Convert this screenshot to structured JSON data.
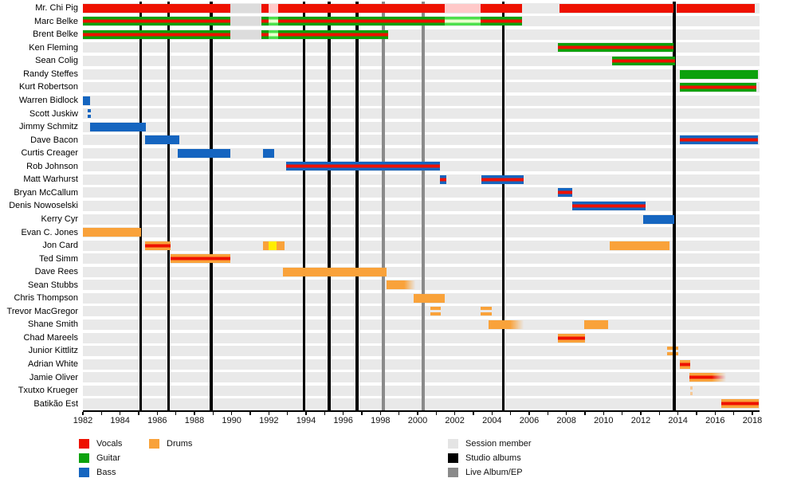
{
  "chart_data": {
    "type": "timeline",
    "description": "Band members timeline (Gantt-style) with instrument roles and album release lines",
    "x_axis": {
      "start": 1982,
      "end": 2018,
      "tick_step": 1,
      "label_step": 2,
      "tick_labels": [
        "1982",
        "1984",
        "1986",
        "1988",
        "1990",
        "1992",
        "1994",
        "1996",
        "1998",
        "2000",
        "2002",
        "2004",
        "2006",
        "2008",
        "2010",
        "2012",
        "2014",
        "2016",
        "2018"
      ]
    },
    "albums": {
      "studio": [
        1985.1,
        1986.6,
        1988.9,
        1993.9,
        1995.25,
        1996.75,
        2004.6,
        2013.8
      ],
      "live": [
        1998.15,
        2000.3
      ]
    },
    "colors": {
      "vocals": "#ee1100",
      "guitar": "#0ca10c",
      "bass": "#1565c0",
      "drums": "#f9a23a",
      "vocals_light": "#ffc9c9",
      "guitar_light": "#4de04d",
      "drums_light": "#ffee00",
      "session": "#dcdcdc",
      "studio_line": "#000000",
      "live_line": "#8a8a8a",
      "row_background": "#e9e9e9"
    },
    "styles": {
      "vocals": {
        "stripes": [
          "#ee1100"
        ]
      },
      "guitar": {
        "stripes": [
          "#0ca10c"
        ]
      },
      "bass": {
        "stripes": [
          "#1565c0"
        ]
      },
      "drums": {
        "stripes": [
          "#f9a23a"
        ]
      },
      "guitar_vocals": {
        "stripes": [
          "#0ca10c",
          "#ee1100",
          "#0ca10c"
        ]
      },
      "bass_vocals": {
        "stripes": [
          "#1565c0",
          "#ee1100",
          "#1565c0"
        ]
      },
      "drums_vocals": {
        "stripes": [
          "#f9a23a",
          "#ee1100",
          "#f9a23a"
        ]
      },
      "vocals_light": {
        "stripes": [
          "#ffc9c9"
        ]
      },
      "guitar_light": {
        "stripes": [
          "#4de04d",
          "#eaffcf",
          "#4de04d"
        ]
      },
      "drums_light": {
        "stripes": [
          "#ffee00"
        ]
      },
      "session": {
        "stripes": [
          "#dcdcdc"
        ]
      },
      "bass_dash": {
        "stripes": [
          "#1565c0"
        ],
        "dashed": true
      },
      "drums_dash": {
        "stripes": [
          "#f9a23a"
        ],
        "dashed": true
      },
      "drums_dash_faint": {
        "stripes": [
          "#f5c896"
        ],
        "dashed": true
      }
    },
    "members": [
      {
        "name": "Mr. Chi Pig",
        "bars": [
          {
            "f": 1982,
            "t": 1989.95,
            "s": "vocals"
          },
          {
            "f": 1989.95,
            "t": 1991.6,
            "s": "session"
          },
          {
            "f": 1991.6,
            "t": 1992.0,
            "s": "vocals"
          },
          {
            "f": 1992.0,
            "t": 1992.5,
            "s": "vocals_light"
          },
          {
            "f": 1992.5,
            "t": 2001.45,
            "s": "vocals"
          },
          {
            "f": 2001.45,
            "t": 2003.4,
            "s": "vocals_light"
          },
          {
            "f": 2003.4,
            "t": 2005.6,
            "s": "vocals"
          },
          {
            "f": 2007.65,
            "t": 2013.75,
            "s": "vocals"
          },
          {
            "f": 2013.95,
            "t": 2018.15,
            "s": "vocals"
          }
        ]
      },
      {
        "name": "Marc Belke",
        "bars": [
          {
            "f": 1982,
            "t": 1989.95,
            "s": "guitar_vocals"
          },
          {
            "f": 1989.95,
            "t": 1991.6,
            "s": "session"
          },
          {
            "f": 1991.6,
            "t": 1992.0,
            "s": "guitar_vocals"
          },
          {
            "f": 1992.0,
            "t": 1992.5,
            "s": "guitar_light"
          },
          {
            "f": 1992.5,
            "t": 2001.45,
            "s": "guitar_vocals"
          },
          {
            "f": 2001.45,
            "t": 2003.4,
            "s": "guitar_light"
          },
          {
            "f": 2003.4,
            "t": 2005.6,
            "s": "guitar_vocals"
          }
        ]
      },
      {
        "name": "Brent Belke",
        "bars": [
          {
            "f": 1982,
            "t": 1989.95,
            "s": "guitar_vocals"
          },
          {
            "f": 1989.95,
            "t": 1991.6,
            "s": "session"
          },
          {
            "f": 1991.6,
            "t": 1992.0,
            "s": "guitar_vocals"
          },
          {
            "f": 1992.0,
            "t": 1992.5,
            "s": "guitar_light"
          },
          {
            "f": 1992.5,
            "t": 1998.4,
            "s": "guitar_vocals"
          }
        ]
      },
      {
        "name": "Ken Fleming",
        "bars": [
          {
            "f": 2007.55,
            "t": 2013.75,
            "s": "guitar_vocals"
          }
        ]
      },
      {
        "name": "Sean Colig",
        "bars": [
          {
            "f": 2010.45,
            "t": 2013.85,
            "s": "guitar_vocals"
          }
        ]
      },
      {
        "name": "Randy Steffes",
        "bars": [
          {
            "f": 2014.1,
            "t": 2018.3,
            "s": "guitar"
          }
        ]
      },
      {
        "name": "Kurt Robertson",
        "bars": [
          {
            "f": 2014.1,
            "t": 2018.2,
            "s": "guitar_vocals"
          }
        ]
      },
      {
        "name": "Warren Bidlock",
        "bars": [
          {
            "f": 1982,
            "t": 1982.4,
            "s": "bass"
          }
        ]
      },
      {
        "name": "Scott Juskiw",
        "bars": [
          {
            "f": 1982.25,
            "t": 1982.45,
            "s": "bass_dash"
          }
        ]
      },
      {
        "name": "Jimmy Schmitz",
        "bars": [
          {
            "f": 1982.4,
            "t": 1985.4,
            "s": "bass"
          }
        ]
      },
      {
        "name": "Dave Bacon",
        "bars": [
          {
            "f": 1985.35,
            "t": 1987.2,
            "s": "bass"
          },
          {
            "f": 2014.1,
            "t": 2018.3,
            "s": "bass_vocals"
          }
        ]
      },
      {
        "name": "Curtis Creager",
        "bars": [
          {
            "f": 1987.1,
            "t": 1989.95,
            "s": "bass"
          },
          {
            "f": 1991.7,
            "t": 1992.3,
            "s": "bass"
          }
        ]
      },
      {
        "name": "Rob Johnson",
        "bars": [
          {
            "f": 1992.95,
            "t": 2001.2,
            "s": "bass_vocals"
          }
        ]
      },
      {
        "name": "Matt Warhurst",
        "bars": [
          {
            "f": 2001.2,
            "t": 2001.55,
            "s": "bass_vocals"
          },
          {
            "f": 2003.45,
            "t": 2005.7,
            "s": "bass_vocals"
          }
        ]
      },
      {
        "name": "Bryan McCallum",
        "bars": [
          {
            "f": 2007.55,
            "t": 2008.3,
            "s": "bass_vocals"
          }
        ]
      },
      {
        "name": "Denis Nowoselski",
        "bars": [
          {
            "f": 2008.3,
            "t": 2012.25,
            "s": "bass_vocals"
          }
        ]
      },
      {
        "name": "Kerry Cyr",
        "bars": [
          {
            "f": 2012.15,
            "t": 2013.8,
            "s": "bass"
          }
        ]
      },
      {
        "name": "Evan C. Jones",
        "bars": [
          {
            "f": 1982,
            "t": 1985.15,
            "s": "drums"
          }
        ]
      },
      {
        "name": "Jon Card",
        "bars": [
          {
            "f": 1985.35,
            "t": 1986.7,
            "s": "drums_vocals"
          },
          {
            "f": 1991.7,
            "t": 1992.0,
            "s": "drums"
          },
          {
            "f": 1992.0,
            "t": 1992.4,
            "s": "drums_light"
          },
          {
            "f": 1992.4,
            "t": 1992.85,
            "s": "drums"
          },
          {
            "f": 2010.35,
            "t": 2013.55,
            "s": "drums"
          }
        ]
      },
      {
        "name": "Ted Simm",
        "bars": [
          {
            "f": 1986.7,
            "t": 1989.95,
            "s": "drums_vocals"
          }
        ]
      },
      {
        "name": "Dave Rees",
        "bars": [
          {
            "f": 1992.75,
            "t": 1998.35,
            "s": "drums"
          }
        ]
      },
      {
        "name": "Sean Stubbs",
        "bars": [
          {
            "f": 1998.35,
            "t": 1999.9,
            "s": "drums",
            "fade": "r"
          }
        ]
      },
      {
        "name": "Chris Thompson",
        "bars": [
          {
            "f": 1999.8,
            "t": 2001.45,
            "s": "drums"
          }
        ]
      },
      {
        "name": "Trevor MacGregor",
        "bars": [
          {
            "f": 2000.7,
            "t": 2001.25,
            "s": "drums_dash"
          },
          {
            "f": 2003.4,
            "t": 2004.0,
            "s": "drums_dash"
          }
        ]
      },
      {
        "name": "Shane Smith",
        "bars": [
          {
            "f": 2003.8,
            "t": 2005.75,
            "s": "drums",
            "fade": "r"
          },
          {
            "f": 2008.95,
            "t": 2010.25,
            "s": "drums"
          }
        ]
      },
      {
        "name": "Chad Mareels",
        "bars": [
          {
            "f": 2007.55,
            "t": 2009.0,
            "s": "drums_vocals"
          }
        ]
      },
      {
        "name": "Junior Kittlitz",
        "bars": [
          {
            "f": 2013.4,
            "t": 2014.0,
            "s": "drums_dash"
          }
        ]
      },
      {
        "name": "Adrian White",
        "bars": [
          {
            "f": 2014.1,
            "t": 2014.65,
            "s": "drums_vocals"
          }
        ]
      },
      {
        "name": "Jamie Oliver",
        "bars": [
          {
            "f": 2014.6,
            "t": 2016.65,
            "s": "drums_vocals",
            "fade": "r"
          }
        ]
      },
      {
        "name": "Txutxo Krueger",
        "bars": [
          {
            "f": 2014.65,
            "t": 2014.8,
            "s": "drums_dash_faint"
          }
        ]
      },
      {
        "name": "Batikão Est",
        "bars": [
          {
            "f": 2016.35,
            "t": 2018.35,
            "s": "drums_vocals"
          }
        ]
      }
    ]
  },
  "legend": {
    "items": [
      {
        "label": "Vocals",
        "color": "#ee1100",
        "col": 0,
        "row": 0
      },
      {
        "label": "Guitar",
        "color": "#0ca10c",
        "col": 0,
        "row": 1
      },
      {
        "label": "Bass",
        "color": "#1565c0",
        "col": 0,
        "row": 2
      },
      {
        "label": "Drums",
        "color": "#f9a23a",
        "col": 1,
        "row": 0
      },
      {
        "label": "Session member",
        "color": "#e4e4e4",
        "col": 2,
        "row": 0
      },
      {
        "label": "Studio albums",
        "color": "#000000",
        "col": 2,
        "row": 1
      },
      {
        "label": "Live Album/EP",
        "color": "#8a8a8a",
        "col": 2,
        "row": 2
      }
    ]
  }
}
